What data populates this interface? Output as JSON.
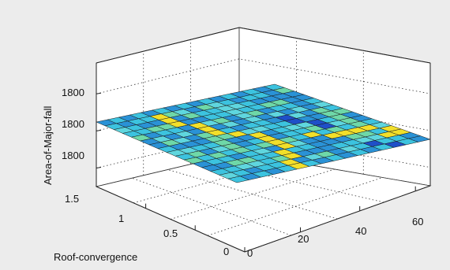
{
  "chart_data": {
    "type": "surface3d",
    "xlabel": "",
    "ylabel": "Roof-convergence",
    "zlabel": "Area-of-Major-fall",
    "x_ticks": [
      "0",
      "20",
      "40",
      "60"
    ],
    "y_ticks": [
      "0",
      "0.5",
      "1",
      "1.5"
    ],
    "z_ticks": [
      "1800",
      "1800",
      "1800"
    ],
    "xlim": [
      0,
      70
    ],
    "ylim": [
      0,
      1.5
    ],
    "grid": true,
    "grid_size": [
      16,
      16
    ],
    "colors": {
      "dark_blue": "#1f4fc8",
      "blue": "#2a92d6",
      "cyan": "#3cc3df",
      "light_cyan": "#5fd6de",
      "green": "#6ed8a8",
      "yellow": "#f2df2a",
      "background": "#ececec",
      "axes_background": "#ffffff"
    },
    "surface_patterns": {
      "yellow_cells": [
        [
          1,
          4
        ],
        [
          2,
          4
        ],
        [
          3,
          4
        ],
        [
          4,
          5
        ],
        [
          5,
          5
        ],
        [
          6,
          5
        ],
        [
          7,
          6
        ],
        [
          8,
          7
        ],
        [
          9,
          7
        ],
        [
          10,
          7
        ],
        [
          11,
          7
        ],
        [
          12,
          6
        ],
        [
          13,
          6
        ],
        [
          14,
          5
        ],
        [
          15,
          5
        ],
        [
          12,
          15
        ],
        [
          13,
          15
        ],
        [
          11,
          14
        ],
        [
          11,
          13
        ],
        [
          11,
          12
        ],
        [
          11,
          11
        ],
        [
          10,
          10
        ],
        [
          13,
          14
        ]
      ],
      "dark_blue_cells": [
        [
          6,
          11
        ],
        [
          7,
          11
        ],
        [
          8,
          12
        ],
        [
          9,
          12
        ],
        [
          14,
          12
        ],
        [
          15,
          13
        ]
      ]
    }
  }
}
